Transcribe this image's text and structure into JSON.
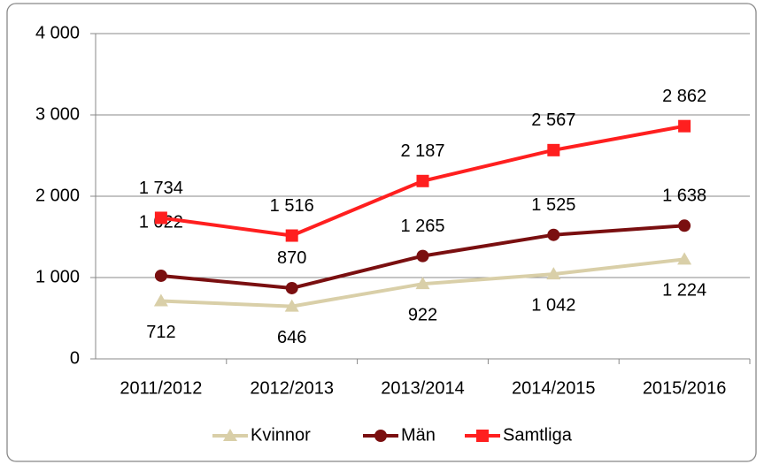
{
  "chart_data": {
    "type": "line",
    "categories": [
      "2011/2012",
      "2012/2013",
      "2013/2014",
      "2014/2015",
      "2015/2016"
    ],
    "series": [
      {
        "name": "Kvinnor",
        "color": "#d9cfa8",
        "marker": "triangle",
        "values": [
          712,
          646,
          922,
          1042,
          1224
        ],
        "value_labels": [
          "712",
          "646",
          "922",
          "1 042",
          "1 224"
        ]
      },
      {
        "name": "Män",
        "color": "#7a0f10",
        "marker": "circle",
        "values": [
          1022,
          870,
          1265,
          1525,
          1638
        ],
        "value_labels": [
          "1 022",
          "870",
          "1 265",
          "1 525",
          "1 638"
        ]
      },
      {
        "name": "Samtliga",
        "color": "#ff1f1f",
        "marker": "square",
        "values": [
          1734,
          1516,
          2187,
          2567,
          2862
        ],
        "value_labels": [
          "1 734",
          "1 516",
          "2 187",
          "2 567",
          "2 862"
        ]
      }
    ],
    "ylim": [
      0,
      4000
    ],
    "yticks": [
      0,
      {
        "value": 1000,
        "label": "1 000"
      },
      {
        "value": 2000,
        "label": "2 000"
      },
      {
        "value": 3000,
        "label": "3 000"
      },
      {
        "value": 4000,
        "label": "4 000"
      }
    ],
    "grid": true,
    "legend": "bottom"
  }
}
